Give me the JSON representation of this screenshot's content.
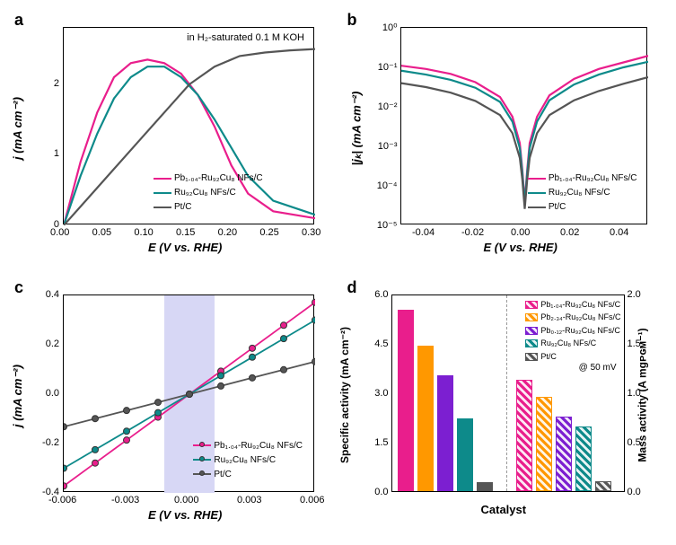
{
  "panels": {
    "a": "a",
    "b": "b",
    "c": "c",
    "d": "d"
  },
  "colors": {
    "pb104": "#e91e8c",
    "ru92": "#0d8a8a",
    "ptc": "#555555",
    "pb234": "#ff9800",
    "pb012": "#7c1fd1",
    "highlight": "#d7d7f5"
  },
  "chartA": {
    "note": "in H₂-saturated 0.1 M KOH",
    "xlabel": "E (V vs. RHE)",
    "ylabel": "j (mA cm⁻²)",
    "xlim": [
      0,
      0.3
    ],
    "ylim": [
      0,
      2.8
    ],
    "xticks": [
      "0.00",
      "0.05",
      "0.10",
      "0.15",
      "0.20",
      "0.25",
      "0.30"
    ],
    "yticks": [
      "0",
      "1",
      "2"
    ],
    "legend": [
      {
        "label": "Pb₁.₀₄-Ru₉₂Cu₈ NFs/C",
        "color": "#e91e8c"
      },
      {
        "label": "Ru₉₂Cu₈ NFs/C",
        "color": "#0d8a8a"
      },
      {
        "label": "Pt/C",
        "color": "#555555"
      }
    ],
    "series": {
      "pb104": [
        [
          0,
          0
        ],
        [
          0.02,
          0.9
        ],
        [
          0.04,
          1.6
        ],
        [
          0.06,
          2.1
        ],
        [
          0.08,
          2.3
        ],
        [
          0.1,
          2.35
        ],
        [
          0.12,
          2.3
        ],
        [
          0.14,
          2.15
        ],
        [
          0.16,
          1.85
        ],
        [
          0.18,
          1.4
        ],
        [
          0.2,
          0.85
        ],
        [
          0.22,
          0.45
        ],
        [
          0.25,
          0.2
        ],
        [
          0.3,
          0.1
        ]
      ],
      "ru92": [
        [
          0,
          0
        ],
        [
          0.02,
          0.7
        ],
        [
          0.04,
          1.3
        ],
        [
          0.06,
          1.8
        ],
        [
          0.08,
          2.1
        ],
        [
          0.1,
          2.25
        ],
        [
          0.12,
          2.25
        ],
        [
          0.14,
          2.1
        ],
        [
          0.16,
          1.85
        ],
        [
          0.18,
          1.5
        ],
        [
          0.2,
          1.1
        ],
        [
          0.22,
          0.7
        ],
        [
          0.25,
          0.35
        ],
        [
          0.3,
          0.15
        ]
      ],
      "ptc": [
        [
          0,
          0
        ],
        [
          0.03,
          0.4
        ],
        [
          0.06,
          0.8
        ],
        [
          0.09,
          1.2
        ],
        [
          0.12,
          1.6
        ],
        [
          0.15,
          2.0
        ],
        [
          0.18,
          2.25
        ],
        [
          0.21,
          2.4
        ],
        [
          0.24,
          2.45
        ],
        [
          0.27,
          2.48
        ],
        [
          0.3,
          2.5
        ]
      ]
    }
  },
  "chartB": {
    "xlabel": "E (V vs. RHE)",
    "ylabel": "|jₖ| (mA cm⁻²)",
    "xlim": [
      -0.05,
      0.05
    ],
    "ylim_log": [
      -5,
      1
    ],
    "xticks": [
      "-0.04",
      "-0.02",
      "0.00",
      "0.02",
      "0.04"
    ],
    "yticks": [
      "10⁻⁵",
      "10⁻⁴",
      "10⁻³",
      "10⁻²",
      "10⁻¹",
      "10⁰"
    ],
    "legend": [
      {
        "label": "Pb₁.₀₄-Ru₉₂Cu₈ NFs/C",
        "color": "#e91e8c"
      },
      {
        "label": "Ru₉₂Cu₈ NFs/C",
        "color": "#0d8a8a"
      },
      {
        "label": "Pt/C",
        "color": "#555555"
      }
    ],
    "series": {
      "pb104": [
        [
          -0.05,
          -0.15
        ],
        [
          -0.04,
          -0.25
        ],
        [
          -0.03,
          -0.4
        ],
        [
          -0.02,
          -0.65
        ],
        [
          -0.01,
          -1.1
        ],
        [
          -0.005,
          -1.7
        ],
        [
          -0.002,
          -2.5
        ],
        [
          -0.001,
          -3.3
        ],
        [
          0,
          -4.3
        ],
        [
          0.001,
          -3.3
        ],
        [
          0.002,
          -2.5
        ],
        [
          0.005,
          -1.7
        ],
        [
          0.01,
          -1.05
        ],
        [
          0.02,
          -0.55
        ],
        [
          0.03,
          -0.25
        ],
        [
          0.04,
          -0.05
        ],
        [
          0.05,
          0.15
        ]
      ],
      "ru92": [
        [
          -0.05,
          -0.3
        ],
        [
          -0.04,
          -0.42
        ],
        [
          -0.03,
          -0.58
        ],
        [
          -0.02,
          -0.82
        ],
        [
          -0.01,
          -1.25
        ],
        [
          -0.005,
          -1.85
        ],
        [
          -0.002,
          -2.65
        ],
        [
          -0.001,
          -3.4
        ],
        [
          0,
          -4.35
        ],
        [
          0.001,
          -3.4
        ],
        [
          0.002,
          -2.65
        ],
        [
          0.005,
          -1.85
        ],
        [
          0.01,
          -1.2
        ],
        [
          0.02,
          -0.72
        ],
        [
          0.03,
          -0.42
        ],
        [
          0.04,
          -0.2
        ],
        [
          0.05,
          -0.03
        ]
      ],
      "ptc": [
        [
          -0.05,
          -0.68
        ],
        [
          -0.04,
          -0.8
        ],
        [
          -0.03,
          -0.97
        ],
        [
          -0.02,
          -1.22
        ],
        [
          -0.01,
          -1.65
        ],
        [
          -0.005,
          -2.2
        ],
        [
          -0.002,
          -2.95
        ],
        [
          -0.001,
          -3.6
        ],
        [
          0,
          -4.5
        ],
        [
          0.001,
          -3.6
        ],
        [
          0.002,
          -2.95
        ],
        [
          0.005,
          -2.2
        ],
        [
          0.01,
          -1.65
        ],
        [
          0.02,
          -1.2
        ],
        [
          0.03,
          -0.92
        ],
        [
          0.04,
          -0.7
        ],
        [
          0.05,
          -0.5
        ]
      ]
    }
  },
  "chartC": {
    "xlabel": "E (V vs. RHE)",
    "ylabel": "j (mA cm⁻²)",
    "xlim": [
      -0.006,
      0.006
    ],
    "ylim": [
      -0.4,
      0.4
    ],
    "xticks": [
      "-0.006",
      "-0.003",
      "0.000",
      "0.003",
      "0.006"
    ],
    "yticks": [
      "-0.4",
      "-0.2",
      "0.0",
      "0.2",
      "0.4"
    ],
    "legend": [
      {
        "label": "Pb₁.₀₄-Ru₉₂Cu₈ NFs/C",
        "color": "#e91e8c"
      },
      {
        "label": "Ru₉₂Cu₈ NFs/C",
        "color": "#0d8a8a"
      },
      {
        "label": "Pt/C",
        "color": "#555555"
      }
    ],
    "series": {
      "pb104": {
        "slope": 62,
        "points": [
          -0.006,
          -0.0045,
          -0.003,
          -0.0015,
          0,
          0.0015,
          0.003,
          0.0045,
          0.006
        ]
      },
      "ru92": {
        "slope": 50,
        "points": [
          -0.006,
          -0.0045,
          -0.003,
          -0.0015,
          0,
          0.0015,
          0.003,
          0.0045,
          0.006
        ]
      },
      "ptc": {
        "slope": 22,
        "points": [
          -0.006,
          -0.0045,
          -0.003,
          -0.0015,
          0,
          0.0015,
          0.003,
          0.0045,
          0.006
        ]
      }
    }
  },
  "chartD": {
    "xlabel": "Catalyst",
    "ylabel_left": "Specific activity (mA cm⁻²)",
    "ylabel_right": "Mass activity (A mgᴘɢᴍ⁻¹)",
    "ylim_left": [
      0,
      6.0
    ],
    "ylim_right": [
      0,
      2.0
    ],
    "yticks_left": [
      "0.0",
      "1.5",
      "3.0",
      "4.5",
      "6.0"
    ],
    "yticks_right": [
      "0.0",
      "0.5",
      "1.0",
      "1.5",
      "2.0"
    ],
    "note": "@ 50 mV",
    "legend": [
      {
        "label": "Pb₁.₀₄-Ru₉₂Cu₈ NFs/C",
        "color": "#e91e8c"
      },
      {
        "label": "Pb₂.₃₄-Ru₉₂Cu₈ NFs/C",
        "color": "#ff9800"
      },
      {
        "label": "Pb₀.₁₂-Ru₉₂Cu₈ NFs/C",
        "color": "#7c1fd1"
      },
      {
        "label": "Ru₉₂Cu₈ NFs/C",
        "color": "#0d8a8a"
      },
      {
        "label": "Pt/C",
        "color": "#555555"
      }
    ],
    "specific": [
      {
        "name": "pb104",
        "value": 5.5,
        "color": "#e91e8c"
      },
      {
        "name": "pb234",
        "value": 4.4,
        "color": "#ff9800"
      },
      {
        "name": "pb012",
        "value": 3.5,
        "color": "#7c1fd1"
      },
      {
        "name": "ru92",
        "value": 2.2,
        "color": "#0d8a8a"
      },
      {
        "name": "ptc",
        "value": 0.25,
        "color": "#555555"
      }
    ],
    "mass": [
      {
        "name": "pb104",
        "value": 1.12,
        "color": "#e91e8c"
      },
      {
        "name": "pb234",
        "value": 0.95,
        "color": "#ff9800"
      },
      {
        "name": "pb012",
        "value": 0.75,
        "color": "#7c1fd1"
      },
      {
        "name": "ru92",
        "value": 0.65,
        "color": "#0d8a8a"
      },
      {
        "name": "ptc",
        "value": 0.1,
        "color": "#555555"
      }
    ]
  }
}
